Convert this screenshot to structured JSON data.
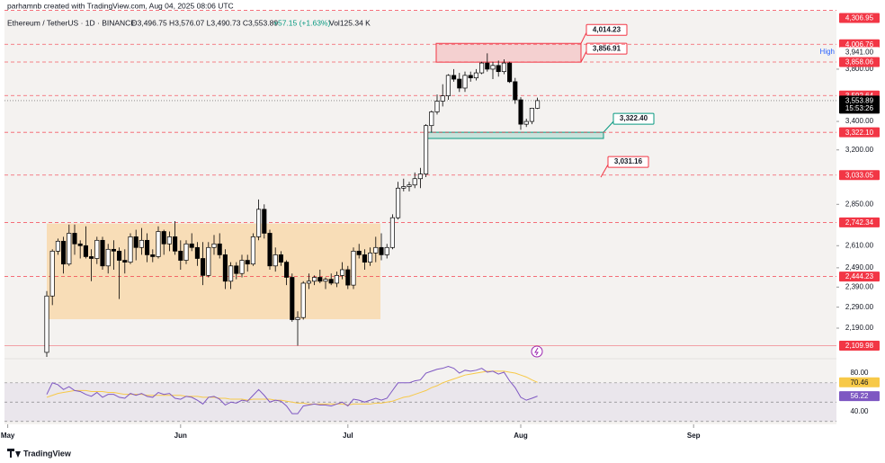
{
  "header": {
    "credit": "parhamnb created with TradingView.com, Aug 04, 2025 08:06 UTC",
    "symbol": "Ethereum / TetherUS · 1D · BINANCE",
    "ohlc": "O3,496.75 H3,576.07 L3,490.73 C3,553.89",
    "change": "+57.15 (+1.63%)",
    "volume": "Vol125.34 K"
  },
  "footer": {
    "brand": "TradingView"
  },
  "chart_data": [
    {
      "type": "candlestick",
      "log": true,
      "ylim": [
        2056,
        4319
      ],
      "open": [
        2080,
        2345,
        2580,
        2635,
        2510,
        2680,
        2620,
        2610,
        2550,
        2540,
        2640,
        2500,
        2590,
        2580,
        2530,
        2520,
        2660,
        2600,
        2640,
        2560,
        2550,
        2690,
        2620,
        2660,
        2580,
        2530,
        2620,
        2600,
        2540,
        2450,
        2600,
        2620,
        2560,
        2420,
        2500,
        2460,
        2530,
        2510,
        2660,
        2820,
        2680,
        2500,
        2560,
        2520,
        2440,
        2230,
        2240,
        2410,
        2420,
        2440,
        2420,
        2430,
        2410,
        2450,
        2480,
        2400,
        2580,
        2560,
        2520,
        2570,
        2600,
        2560,
        2600,
        2770,
        2950,
        2960,
        2970,
        3010,
        3040,
        3370,
        3470,
        3550,
        3590,
        3750,
        3720,
        3650,
        3750,
        3730,
        3770,
        3850,
        3800,
        3830,
        3780,
        3850,
        3700,
        3560,
        3380,
        3400,
        3496.75
      ],
      "high": [
        2370,
        2590,
        2650,
        2660,
        2730,
        2730,
        2640,
        2720,
        2590,
        2660,
        2660,
        2620,
        2640,
        2600,
        2590,
        2680,
        2700,
        2710,
        2680,
        2590,
        2720,
        2700,
        2690,
        2750,
        2640,
        2640,
        2680,
        2630,
        2630,
        2630,
        2670,
        2680,
        2590,
        2520,
        2520,
        2560,
        2560,
        2680,
        2880,
        2850,
        2700,
        2600,
        2580,
        2530,
        2460,
        2270,
        2420,
        2460,
        2450,
        2480,
        2440,
        2460,
        2470,
        2520,
        2500,
        2600,
        2620,
        2590,
        2600,
        2660,
        2680,
        2620,
        2790,
        2990,
        3010,
        2990,
        3050,
        3080,
        3380,
        3480,
        3600,
        3680,
        3760,
        3800,
        3770,
        3780,
        3780,
        3800,
        3860,
        3930,
        3860,
        3870,
        3880,
        3860,
        3730,
        3580,
        3420,
        3500,
        3576.07
      ],
      "low": [
        2060,
        2300,
        2560,
        2460,
        2500,
        2560,
        2540,
        2540,
        2420,
        2510,
        2480,
        2460,
        2480,
        2330,
        2460,
        2510,
        2530,
        2560,
        2520,
        2520,
        2540,
        2560,
        2580,
        2560,
        2480,
        2510,
        2580,
        2500,
        2400,
        2440,
        2560,
        2540,
        2380,
        2380,
        2430,
        2440,
        2470,
        2500,
        2640,
        2650,
        2480,
        2470,
        2500,
        2400,
        2220,
        2110,
        2230,
        2380,
        2400,
        2410,
        2380,
        2400,
        2390,
        2430,
        2380,
        2380,
        2540,
        2480,
        2500,
        2520,
        2530,
        2540,
        2590,
        2760,
        2930,
        2930,
        2950,
        2950,
        3020,
        3320,
        3450,
        3510,
        3560,
        3700,
        3620,
        3620,
        3700,
        3710,
        3760,
        3780,
        3720,
        3740,
        3760,
        3690,
        3530,
        3340,
        3360,
        3380,
        3490.73
      ],
      "close": [
        2345,
        2580,
        2635,
        2510,
        2680,
        2620,
        2610,
        2550,
        2540,
        2640,
        2500,
        2590,
        2580,
        2530,
        2520,
        2660,
        2600,
        2640,
        2560,
        2550,
        2690,
        2620,
        2660,
        2580,
        2530,
        2620,
        2600,
        2540,
        2450,
        2600,
        2620,
        2560,
        2420,
        2500,
        2460,
        2530,
        2510,
        2660,
        2820,
        2680,
        2500,
        2560,
        2520,
        2440,
        2230,
        2240,
        2410,
        2420,
        2440,
        2420,
        2430,
        2410,
        2450,
        2480,
        2400,
        2580,
        2560,
        2520,
        2570,
        2600,
        2560,
        2600,
        2770,
        2950,
        2960,
        2970,
        3010,
        3040,
        3370,
        3470,
        3550,
        3590,
        3750,
        3720,
        3650,
        3750,
        3730,
        3770,
        3850,
        3800,
        3830,
        3780,
        3850,
        3700,
        3560,
        3380,
        3400,
        3497,
        3553.89
      ],
      "up_color": "#ffffff",
      "down_color": "#000000",
      "xticks": [
        {
          "value": -7,
          "label": "May"
        },
        {
          "value": 24,
          "label": "Jun"
        },
        {
          "value": 54,
          "label": "Jul"
        },
        {
          "value": 85,
          "label": "Aug"
        },
        {
          "value": 116,
          "label": "Sep"
        }
      ],
      "yticks": [
        {
          "value": 3800,
          "label": "3,800.00"
        },
        {
          "value": 3400,
          "label": "3,400.00"
        },
        {
          "value": 3200,
          "label": "3,200.00"
        },
        {
          "value": 2850,
          "label": "2,850.00"
        },
        {
          "value": 2610,
          "label": "2,610.00"
        },
        {
          "value": 2490,
          "label": "2,490.00"
        },
        {
          "value": 2390,
          "label": "2,390.00"
        },
        {
          "value": 2290,
          "label": "2,290.00"
        },
        {
          "value": 2190,
          "label": "2,190.00"
        }
      ],
      "levels": [
        {
          "value": 4306.95,
          "label": "4,306.95"
        },
        {
          "value": 4006.76,
          "label": "4,006.76"
        },
        {
          "value": 3858.06,
          "label": "3,858.06"
        },
        {
          "value": 3592.64,
          "label": "3,592.64"
        },
        {
          "value": 3322.1,
          "label": "3,322.10"
        },
        {
          "value": 3033.05,
          "label": "3,033.05"
        },
        {
          "value": 2742.34,
          "label": "2,742.34"
        },
        {
          "value": 2444.23,
          "label": "2,444.23"
        },
        {
          "value": 2109.98,
          "label": "2,109.98"
        }
      ],
      "level_color": "#f23645",
      "high_mark": {
        "text": "High",
        "value": 3941,
        "label": "3,941.00"
      },
      "last_price": {
        "value": 3553.89,
        "label": "3,553.89",
        "countdown": "15:53:26"
      },
      "zones": [
        {
          "top": {
            "value": 4014.23,
            "label": "4,014.23"
          },
          "bottom": {
            "value": 3856.91,
            "label": "3,856.91"
          },
          "color": "#f23645"
        },
        {
          "top": {
            "value": 3322.4,
            "label": "3,322.40"
          },
          "bottom": 3279,
          "color": "#089981"
        },
        {
          "top": 2736,
          "bottom": 2232,
          "color": "#ffb74d"
        }
      ],
      "callouts": [
        {
          "value": 3031.16,
          "label": "3,031.16"
        }
      ]
    },
    {
      "type": "line",
      "ylim": [
        27,
        94
      ],
      "yticks": [
        {
          "value": 80,
          "label": "80.00"
        },
        {
          "value": 40,
          "label": "40.00"
        }
      ],
      "levels": [
        70,
        50,
        30
      ],
      "band_color": "#7e57c2",
      "series": [
        {
          "color": "#f7c948",
          "values": [
            55,
            57,
            59,
            60,
            61,
            62,
            62,
            62,
            61,
            61,
            61,
            60,
            60,
            59,
            58,
            58,
            58,
            58,
            57,
            57,
            57,
            57,
            57,
            57,
            57,
            56,
            56,
            56,
            55,
            55,
            55,
            54,
            54,
            53,
            53,
            53,
            52,
            53,
            53,
            53,
            53,
            52,
            52,
            51,
            50,
            49,
            49,
            48,
            48,
            48,
            48,
            48,
            48,
            48,
            47,
            48,
            48,
            48,
            48,
            49,
            49,
            50,
            51,
            53,
            55,
            56,
            58,
            60,
            62,
            65,
            67,
            70,
            72,
            74,
            76,
            78,
            79,
            80,
            81,
            82,
            82,
            82,
            82,
            81,
            80,
            78,
            76,
            73,
            70.46
          ]
        },
        {
          "color": "#7e57c2",
          "values": [
            58,
            70,
            68,
            63,
            66,
            62,
            61,
            58,
            56,
            60,
            55,
            58,
            58,
            55,
            54,
            59,
            57,
            59,
            56,
            55,
            60,
            58,
            59,
            54,
            53,
            56,
            55,
            52,
            48,
            55,
            56,
            53,
            47,
            50,
            49,
            52,
            51,
            57,
            63,
            57,
            50,
            52,
            51,
            46,
            38,
            38,
            46,
            47,
            48,
            47,
            47,
            46,
            48,
            50,
            46,
            53,
            52,
            50,
            52,
            54,
            52,
            54,
            62,
            70,
            70,
            70,
            72,
            73,
            80,
            82,
            84,
            85,
            87,
            85,
            80,
            83,
            82,
            83,
            85,
            81,
            82,
            79,
            81,
            72,
            65,
            55,
            52,
            54,
            56.22
          ]
        }
      ]
    }
  ]
}
